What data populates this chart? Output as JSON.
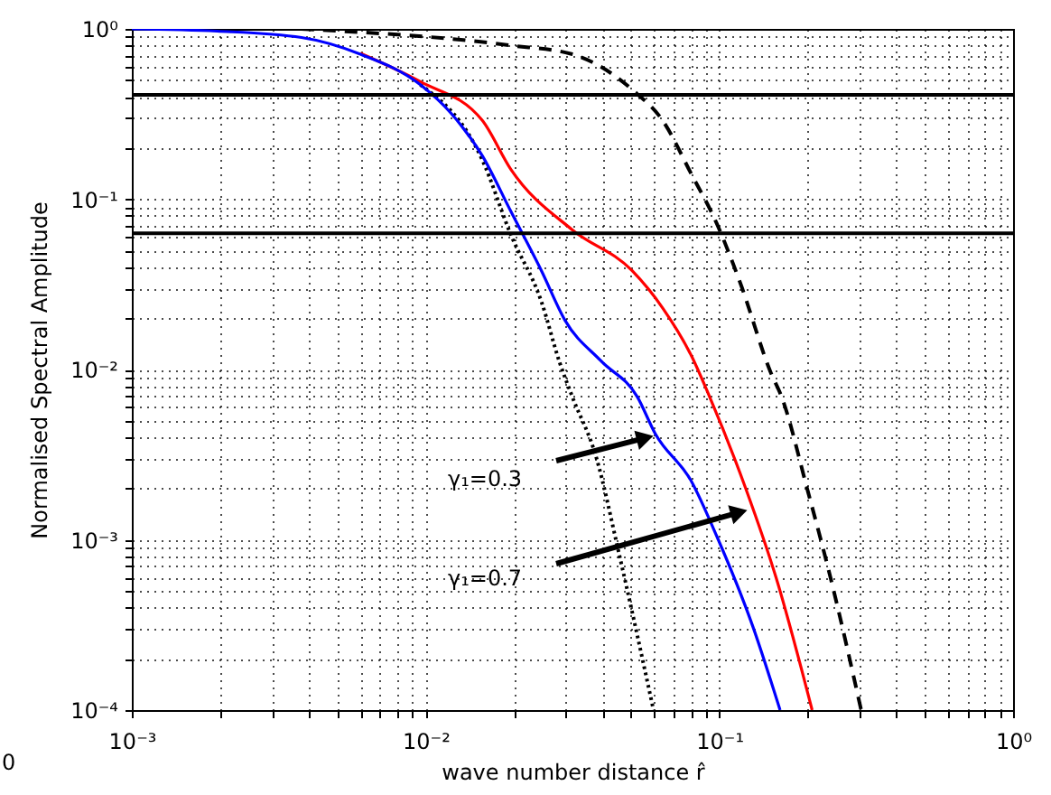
{
  "chart_data": {
    "type": "line",
    "xlabel": "wave number distance r̂",
    "ylabel": "Normalised Spectral Amplitude",
    "log": "xy",
    "grid": true,
    "xlim": [
      0.001,
      1
    ],
    "ylim": [
      0.0001,
      1
    ],
    "xticks": [
      {
        "value": 0.001,
        "label": "10⁻³"
      },
      {
        "value": 0.01,
        "label": "10⁻²"
      },
      {
        "value": 0.1,
        "label": "10⁻¹"
      },
      {
        "value": 1,
        "label": "10⁰"
      }
    ],
    "yticks": [
      {
        "value": 0.0001,
        "label": "10⁻⁴"
      },
      {
        "value": 0.001,
        "label": "10⁻³"
      },
      {
        "value": 0.01,
        "label": "10⁻²"
      },
      {
        "value": 0.1,
        "label": "10⁻¹"
      },
      {
        "value": 1,
        "label": "10⁰"
      }
    ],
    "series": [
      {
        "color": "#0000ff",
        "line_style": "solid",
        "x": [
          0.001,
          0.00195,
          0.00378,
          0.006,
          0.0096,
          0.0122,
          0.0156,
          0.0195,
          0.0248,
          0.0298,
          0.0396,
          0.0526,
          0.0605,
          0.0804,
          0.098,
          0.13,
          0.161
        ],
        "values": [
          1.0,
          0.97,
          0.89,
          0.71,
          0.47,
          0.32,
          0.18,
          0.085,
          0.038,
          0.0195,
          0.0112,
          0.0069,
          0.0042,
          0.0022,
          0.00105,
          0.00031,
          0.0001
        ]
      },
      {
        "color": "#ff0000",
        "line_style": "solid",
        "x": [
          0.006,
          0.0096,
          0.0156,
          0.0195,
          0.0316,
          0.0505,
          0.0641,
          0.0804,
          0.0927,
          0.123,
          0.156,
          0.207
        ],
        "values": [
          0.72,
          0.49,
          0.29,
          0.15,
          0.066,
          0.038,
          0.023,
          0.012,
          0.0069,
          0.002,
          0.0006,
          0.0001
        ]
      },
      {
        "color": "#000000",
        "line_style": "dotted",
        "x": [
          0.0096,
          0.0156,
          0.0195,
          0.0248,
          0.0286,
          0.0316,
          0.038,
          0.0457,
          0.0597
        ],
        "values": [
          0.47,
          0.17,
          0.062,
          0.025,
          0.011,
          0.0069,
          0.0031,
          0.00081,
          0.0001
        ]
      },
      {
        "color": "#000000",
        "line_style": "dashed",
        "x": [
          0.00378,
          0.0195,
          0.0316,
          0.0505,
          0.0641,
          0.0804,
          0.098,
          0.118,
          0.15,
          0.163,
          0.199,
          0.239,
          0.304
        ],
        "values": [
          1.0,
          0.8,
          0.71,
          0.44,
          0.29,
          0.14,
          0.072,
          0.032,
          0.0095,
          0.0069,
          0.002,
          0.0006,
          0.0001
        ]
      }
    ],
    "ref_lines": [
      {
        "axis": "y",
        "value": 0.41,
        "color": "#000000"
      },
      {
        "axis": "y",
        "value": 0.063,
        "color": "#000000"
      }
    ],
    "annotations": [
      "γ₁=0.3",
      "γ₁=0.7",
      "0"
    ]
  }
}
